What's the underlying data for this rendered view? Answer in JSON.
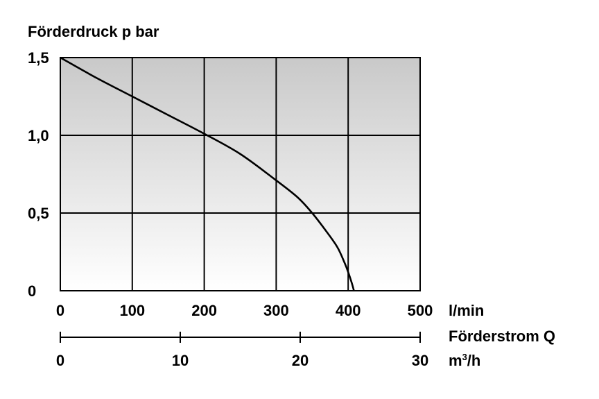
{
  "chart_data": {
    "type": "line",
    "y_title": "Förderdruck p bar",
    "y_ticks": [
      "0",
      "0,5",
      "1,0",
      "1,5"
    ],
    "y_tick_values": [
      0,
      0.5,
      1.0,
      1.5
    ],
    "ylim": [
      0,
      1.5
    ],
    "x_ticks": [
      "0",
      "100",
      "200",
      "300",
      "400",
      "500"
    ],
    "x_tick_values": [
      0,
      100,
      200,
      300,
      400,
      500
    ],
    "xlim": [
      0,
      500
    ],
    "x_unit": "l/min",
    "secondary_axis_label": "Förderstrom Q",
    "secondary_ticks": [
      "0",
      "10",
      "20",
      "30"
    ],
    "secondary_tick_values": [
      0,
      10,
      20,
      30
    ],
    "secondary_lim": [
      0,
      30
    ],
    "secondary_unit_base": "m",
    "secondary_unit_sup": "3",
    "secondary_unit_rest": "/h",
    "grid": true,
    "background": {
      "top": "#c9c9c9",
      "bottom": "#ffffff"
    },
    "line_color": "#000000",
    "series": [
      {
        "x": [
          0,
          50,
          100,
          150,
          200,
          250,
          300,
          330,
          350,
          370,
          385,
          395,
          400,
          405,
          408
        ],
        "y": [
          1.5,
          1.37,
          1.25,
          1.13,
          1.01,
          0.88,
          0.71,
          0.6,
          0.5,
          0.38,
          0.28,
          0.18,
          0.12,
          0.05,
          0
        ]
      }
    ]
  }
}
